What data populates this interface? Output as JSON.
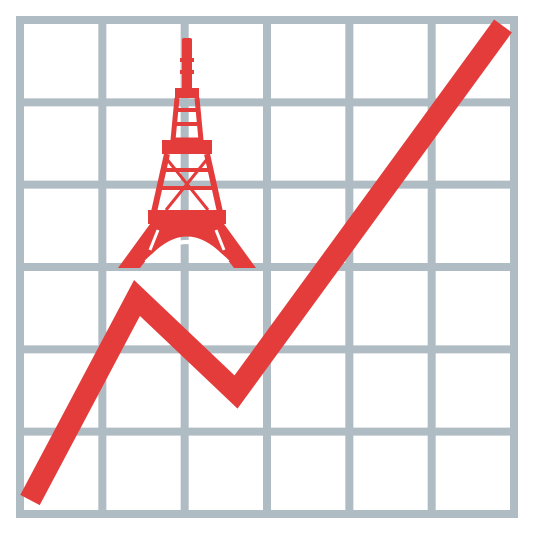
{
  "colors": {
    "background": "#ffffff",
    "grid": "#b0bcc4",
    "accent": "#e43b3b"
  },
  "icons": {
    "chart": "chart-increasing-icon",
    "tower": "tokyo-tower-icon"
  },
  "grid": {
    "columns": 6,
    "rows": 6
  },
  "trend": {
    "direction": "up"
  }
}
